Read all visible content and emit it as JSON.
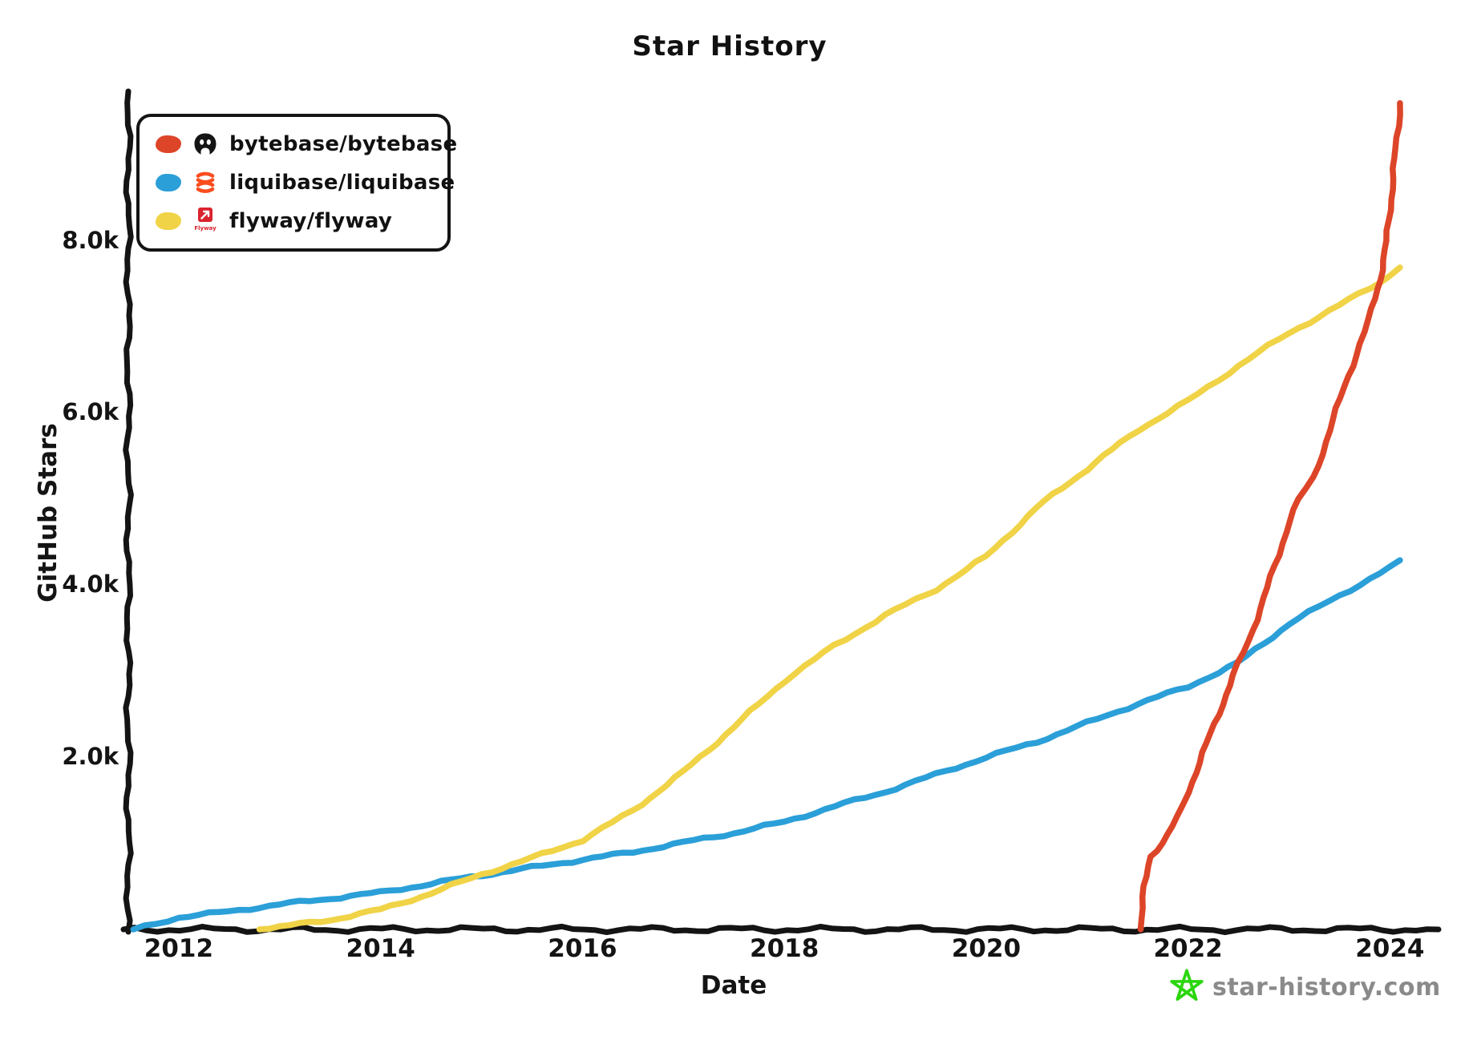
{
  "legend": {
    "items": [
      {
        "label": "bytebase/bytebase",
        "color": "#dd4528",
        "icon": "bytebase-logo"
      },
      {
        "label": "liquibase/liquibase",
        "color": "#2b9fd8",
        "icon": "liquibase-logo"
      },
      {
        "label": "flyway/flyway",
        "color": "#f0d346",
        "icon": "flyway-logo",
        "icon_caption": "Flyway"
      }
    ]
  },
  "footer": {
    "site": "star-history.com",
    "star_color": "#2bd60e",
    "text_color": "#8a8a8a"
  },
  "chart_data": {
    "type": "line",
    "title": "Star History",
    "xlabel": "Date",
    "ylabel": "GitHub Stars",
    "grid": false,
    "legend_position": "top-left",
    "axis_color": "#141414",
    "xlim": [
      2011.5,
      2024.45
    ],
    "ylim": [
      0,
      9700
    ],
    "x_ticks": [
      {
        "value": 2012,
        "label": "2012"
      },
      {
        "value": 2014,
        "label": "2014"
      },
      {
        "value": 2016,
        "label": "2016"
      },
      {
        "value": 2018,
        "label": "2018"
      },
      {
        "value": 2020,
        "label": "2020"
      },
      {
        "value": 2022,
        "label": "2022"
      },
      {
        "value": 2024,
        "label": "2024"
      }
    ],
    "y_ticks": [
      {
        "value": 2000,
        "label": "2.0k"
      },
      {
        "value": 4000,
        "label": "4.0k"
      },
      {
        "value": 6000,
        "label": "6.0k"
      },
      {
        "value": 8000,
        "label": "8.0k"
      }
    ],
    "series": [
      {
        "name": "bytebase/bytebase",
        "color": "#dd4528",
        "points": [
          [
            2021.53,
            0
          ],
          [
            2021.57,
            500
          ],
          [
            2021.62,
            850
          ],
          [
            2021.75,
            1000
          ],
          [
            2021.9,
            1300
          ],
          [
            2022.0,
            1600
          ],
          [
            2022.15,
            2050
          ],
          [
            2022.3,
            2500
          ],
          [
            2022.45,
            2950
          ],
          [
            2022.6,
            3350
          ],
          [
            2022.75,
            3850
          ],
          [
            2022.9,
            4350
          ],
          [
            2023.0,
            4750
          ],
          [
            2023.1,
            5000
          ],
          [
            2023.25,
            5250
          ],
          [
            2023.4,
            5800
          ],
          [
            2023.55,
            6300
          ],
          [
            2023.7,
            6800
          ],
          [
            2023.8,
            7100
          ],
          [
            2023.9,
            7550
          ],
          [
            2023.97,
            8000
          ],
          [
            2024.02,
            8600
          ],
          [
            2024.07,
            9200
          ],
          [
            2024.1,
            9600
          ]
        ]
      },
      {
        "name": "liquibase/liquibase",
        "color": "#2b9fd8",
        "points": [
          [
            2011.55,
            0
          ],
          [
            2012.0,
            140
          ],
          [
            2012.5,
            210
          ],
          [
            2013.0,
            290
          ],
          [
            2013.5,
            360
          ],
          [
            2014.0,
            430
          ],
          [
            2014.5,
            530
          ],
          [
            2015.0,
            630
          ],
          [
            2015.5,
            720
          ],
          [
            2016.0,
            810
          ],
          [
            2016.5,
            900
          ],
          [
            2017.0,
            1010
          ],
          [
            2017.5,
            1120
          ],
          [
            2018.0,
            1250
          ],
          [
            2018.5,
            1430
          ],
          [
            2019.0,
            1600
          ],
          [
            2019.5,
            1800
          ],
          [
            2020.0,
            2000
          ],
          [
            2020.5,
            2180
          ],
          [
            2021.0,
            2400
          ],
          [
            2021.5,
            2620
          ],
          [
            2022.0,
            2820
          ],
          [
            2022.5,
            3100
          ],
          [
            2023.0,
            3550
          ],
          [
            2023.5,
            3880
          ],
          [
            2024.0,
            4200
          ],
          [
            2024.1,
            4290
          ]
        ]
      },
      {
        "name": "flyway/flyway",
        "color": "#f0d346",
        "points": [
          [
            2012.8,
            0
          ],
          [
            2013.0,
            30
          ],
          [
            2013.5,
            110
          ],
          [
            2014.0,
            230
          ],
          [
            2014.5,
            420
          ],
          [
            2015.0,
            640
          ],
          [
            2015.5,
            830
          ],
          [
            2016.0,
            1040
          ],
          [
            2016.5,
            1380
          ],
          [
            2017.0,
            1830
          ],
          [
            2017.5,
            2350
          ],
          [
            2018.0,
            2890
          ],
          [
            2018.5,
            3300
          ],
          [
            2019.0,
            3650
          ],
          [
            2019.5,
            3950
          ],
          [
            2020.0,
            4330
          ],
          [
            2020.5,
            4900
          ],
          [
            2021.0,
            5350
          ],
          [
            2021.5,
            5800
          ],
          [
            2022.0,
            6140
          ],
          [
            2022.5,
            6550
          ],
          [
            2023.0,
            6930
          ],
          [
            2023.5,
            7250
          ],
          [
            2023.9,
            7520
          ],
          [
            2024.1,
            7690
          ]
        ]
      }
    ]
  }
}
